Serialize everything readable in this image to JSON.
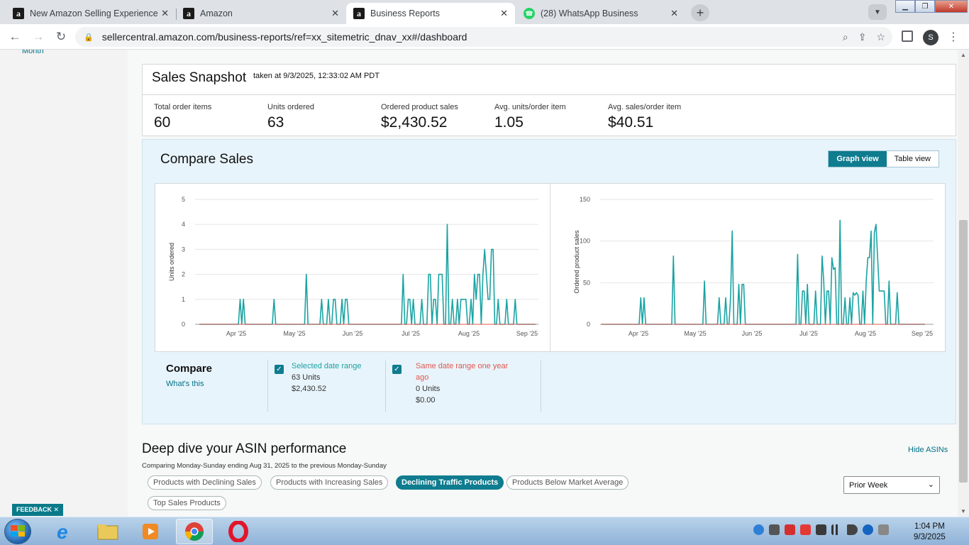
{
  "browser": {
    "tabs": [
      {
        "title": "New Amazon Selling Experience",
        "icon": "amazon-icon"
      },
      {
        "title": "Amazon",
        "icon": "amazon-icon"
      },
      {
        "title": "Business Reports",
        "icon": "amazon-icon",
        "active": true
      },
      {
        "title": "(28) WhatsApp Business",
        "icon": "whatsapp-icon"
      }
    ],
    "url": "sellercentral.amazon.com/business-reports/ref=xx_sitemetric_dnav_xx#/dashboard",
    "profile_initial": "S"
  },
  "sidebar": {
    "partial_item": "Month",
    "feedback_label": "FEEDBACK ✕"
  },
  "snapshot": {
    "title": "Sales Snapshot",
    "taken": "taken at 9/3/2025, 12:33:02 AM PDT",
    "metrics": [
      {
        "label": "Total order items",
        "value": "60"
      },
      {
        "label": "Units ordered",
        "value": "63"
      },
      {
        "label": "Ordered product sales",
        "value": "$2,430.52"
      },
      {
        "label": "Avg. units/order item",
        "value": "1.05"
      },
      {
        "label": "Avg. sales/order item",
        "value": "$40.51"
      }
    ]
  },
  "compare": {
    "title": "Compare Sales",
    "graph_view": "Graph view",
    "table_view": "Table view",
    "legend_title": "Compare",
    "whats_this": "What's this",
    "selected": {
      "label": "Selected date range",
      "units": "63 Units",
      "sales": "$2,430.52"
    },
    "previous": {
      "label_line1": "Same date range one year",
      "label_line2": "ago",
      "units": "0 Units",
      "sales": "$0.00"
    }
  },
  "chart_data": [
    {
      "type": "line",
      "ylabel": "Units ordered",
      "ylim": [
        0,
        5
      ],
      "yticks": [
        "0",
        "1",
        "2",
        "3",
        "4",
        "5"
      ],
      "xticks": [
        "Apr '25",
        "May '25",
        "Jun '25",
        "Jul '25",
        "Aug '25",
        "Sep '25"
      ],
      "series": [
        {
          "color": "#1aa3a3",
          "values": [
            0,
            0,
            0,
            0,
            0,
            0,
            0,
            0,
            0,
            0,
            0,
            0,
            0,
            0,
            0,
            0,
            0,
            0,
            0,
            0,
            0,
            0,
            0,
            0,
            1,
            0,
            1,
            0,
            0,
            0,
            0,
            0,
            0,
            0,
            0,
            0,
            0,
            0,
            0,
            0,
            0,
            0,
            0,
            0,
            1,
            0,
            0,
            0,
            0,
            0,
            0,
            0,
            0,
            0,
            0,
            0,
            0,
            0,
            0,
            0,
            0,
            0,
            0,
            2,
            0,
            0,
            0,
            0,
            0,
            0,
            0,
            0,
            1,
            0,
            0,
            0,
            1,
            0,
            0,
            1,
            1,
            0,
            0,
            0,
            1,
            0,
            1,
            1,
            0,
            0,
            0,
            0,
            0,
            0,
            0,
            0,
            0,
            0,
            0,
            0,
            0,
            0,
            0,
            0,
            0,
            0,
            0,
            0,
            0,
            0,
            0,
            0,
            0,
            0,
            0,
            0,
            0,
            0,
            0,
            0,
            2,
            0,
            0,
            1,
            1,
            0,
            1,
            0,
            0,
            0,
            0,
            1,
            0,
            0,
            0,
            2,
            2,
            0,
            1,
            1,
            0,
            2,
            2,
            2,
            0,
            0,
            4,
            0,
            0,
            1,
            0,
            0,
            1,
            0,
            1,
            1,
            1,
            1,
            0,
            0,
            1,
            0,
            2,
            1,
            2,
            2,
            0,
            2,
            3,
            2,
            1,
            1,
            3,
            3,
            0,
            0,
            1,
            0,
            0,
            0,
            0,
            1,
            0,
            0,
            0,
            0,
            1,
            0,
            0,
            0,
            0,
            0,
            0,
            0,
            0,
            0,
            0,
            0,
            0
          ]
        },
        {
          "color": "#e0574f",
          "values": []
        }
      ]
    },
    {
      "type": "line",
      "ylabel": "Ordered product sales",
      "ylim": [
        0,
        150
      ],
      "yticks": [
        "0",
        "50",
        "100",
        "150"
      ],
      "xticks": [
        "Apr '25",
        "May '25",
        "Jun '25",
        "Jul '25",
        "Aug '25",
        "Sep '25"
      ],
      "series": [
        {
          "color": "#1aa3a3",
          "values": [
            0,
            0,
            0,
            0,
            0,
            0,
            0,
            0,
            0,
            0,
            0,
            0,
            0,
            0,
            0,
            0,
            0,
            0,
            0,
            0,
            0,
            0,
            0,
            0,
            32,
            0,
            32,
            0,
            0,
            0,
            0,
            0,
            0,
            0,
            0,
            0,
            0,
            0,
            0,
            0,
            0,
            0,
            0,
            0,
            82,
            0,
            0,
            0,
            0,
            0,
            0,
            0,
            0,
            0,
            0,
            0,
            0,
            0,
            0,
            0,
            0,
            0,
            0,
            52,
            0,
            0,
            0,
            0,
            0,
            0,
            0,
            0,
            32,
            0,
            0,
            0,
            32,
            0,
            0,
            32,
            112,
            0,
            0,
            0,
            48,
            0,
            48,
            48,
            0,
            0,
            0,
            0,
            0,
            0,
            0,
            0,
            0,
            0,
            0,
            0,
            0,
            0,
            0,
            0,
            0,
            0,
            0,
            0,
            0,
            0,
            0,
            0,
            0,
            0,
            0,
            0,
            0,
            0,
            0,
            0,
            84,
            0,
            0,
            40,
            40,
            0,
            48,
            0,
            0,
            0,
            0,
            40,
            0,
            0,
            0,
            82,
            52,
            0,
            40,
            40,
            0,
            80,
            66,
            68,
            0,
            0,
            125,
            0,
            0,
            32,
            0,
            0,
            32,
            0,
            38,
            35,
            38,
            35,
            0,
            0,
            40,
            0,
            52,
            80,
            80,
            112,
            0,
            110,
            120,
            80,
            40,
            40,
            40,
            40,
            0,
            0,
            52,
            0,
            0,
            0,
            0,
            38,
            0,
            0,
            0,
            0,
            0,
            0,
            0,
            0,
            0,
            0,
            0,
            0,
            0,
            0,
            0,
            0,
            0
          ]
        },
        {
          "color": "#e0574f",
          "values": []
        }
      ]
    }
  ],
  "deepdive": {
    "title": "Deep dive your ASIN performance",
    "hide": "Hide ASINs",
    "subtitle": "Comparing Monday-Sunday ending Aug 31, 2025 to the previous Monday-Sunday",
    "filters": [
      "Products with Declining Sales",
      "Products with Increasing Sales",
      "Declining Traffic Products",
      "Products Below Market Average",
      "Top Sales Products"
    ],
    "active_filter": "Declining Traffic Products",
    "period_select": "Prior Week"
  },
  "taskbar": {
    "time": "1:04 PM",
    "date": "9/3/2025"
  }
}
